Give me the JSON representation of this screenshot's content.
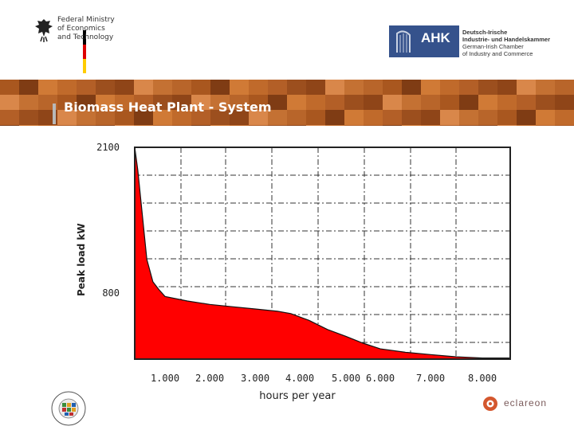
{
  "header": {
    "ministry_lines": [
      "Federal Ministry",
      "of Economics",
      "and Technology"
    ],
    "ahk_label": "AHK",
    "ahk_lines": [
      "Deutsch-Irische",
      "Industrie- und Handelskammer",
      "German-Irish Chamber",
      "of Industry and Commerce"
    ]
  },
  "slide": {
    "title": "Biomass Heat Plant - System"
  },
  "footer": {
    "eclareon_label": "eclareon"
  },
  "colors": {
    "fill": "#ff0000",
    "banner": "#b8652a",
    "ahk_blue": "#35528c"
  },
  "chart_data": {
    "type": "area",
    "ylabel": "Peak load kW",
    "xlabel": "hours per year",
    "y_tick_labels": [
      "2100",
      "800"
    ],
    "y_ticks": [
      2100,
      800
    ],
    "x_tick_labels": [
      "1.000",
      "2.000",
      "3.000",
      "4.000",
      "5.000",
      "6.000",
      "7.000",
      "8.000"
    ],
    "x_ticks": [
      1000,
      2000,
      3000,
      4000,
      5000,
      6000,
      7000,
      8000
    ],
    "xlim": [
      0,
      8760
    ],
    "ylim": [
      220,
      2100
    ],
    "grid": true,
    "series": [
      {
        "x": [
          0,
          100,
          250,
          400,
          600,
          800,
          1000,
          1500,
          2000,
          2500,
          3000,
          3500,
          3800,
          4200,
          4600,
          5000,
          5500,
          6000,
          6500,
          7000,
          7500,
          8000,
          8760
        ],
        "y": [
          2100,
          1900,
          1500,
          1100,
          900,
          830,
          770,
          730,
          700,
          680,
          660,
          640,
          620,
          560,
          480,
          420,
          360,
          310,
          280,
          260,
          240,
          230,
          230
        ]
      }
    ]
  }
}
